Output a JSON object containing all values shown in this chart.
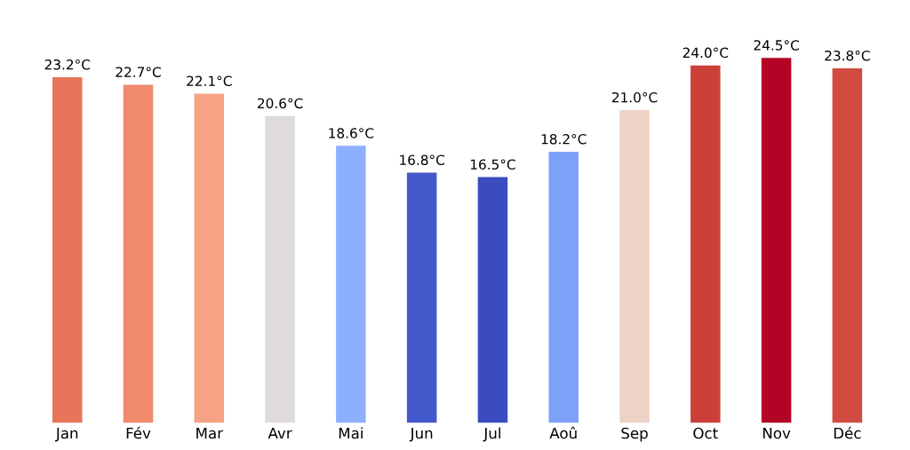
{
  "chart_data": {
    "type": "bar",
    "categories": [
      "Jan",
      "Fév",
      "Mar",
      "Avr",
      "Mai",
      "Jun",
      "Jul",
      "Aoû",
      "Sep",
      "Oct",
      "Nov",
      "Déc"
    ],
    "values": [
      23.2,
      22.7,
      22.1,
      20.6,
      18.6,
      16.8,
      16.5,
      18.2,
      21.0,
      24.0,
      24.5,
      23.8
    ],
    "value_labels": [
      "23.2°C",
      "22.7°C",
      "22.1°C",
      "20.6°C",
      "18.6°C",
      "16.8°C",
      "16.5°C",
      "18.2°C",
      "21.0°C",
      "24.0°C",
      "24.5°C",
      "23.8°C"
    ],
    "colors": [
      "#e7745b",
      "#f08b6e",
      "#f6a385",
      "#dedbda",
      "#8db0fe",
      "#445acc",
      "#3b4cc0",
      "#7da0f9",
      "#ecd3c5",
      "#cc403a",
      "#b40426",
      "#d24b40"
    ],
    "tick_labels": "x",
    "grid": false,
    "legend": false
  }
}
